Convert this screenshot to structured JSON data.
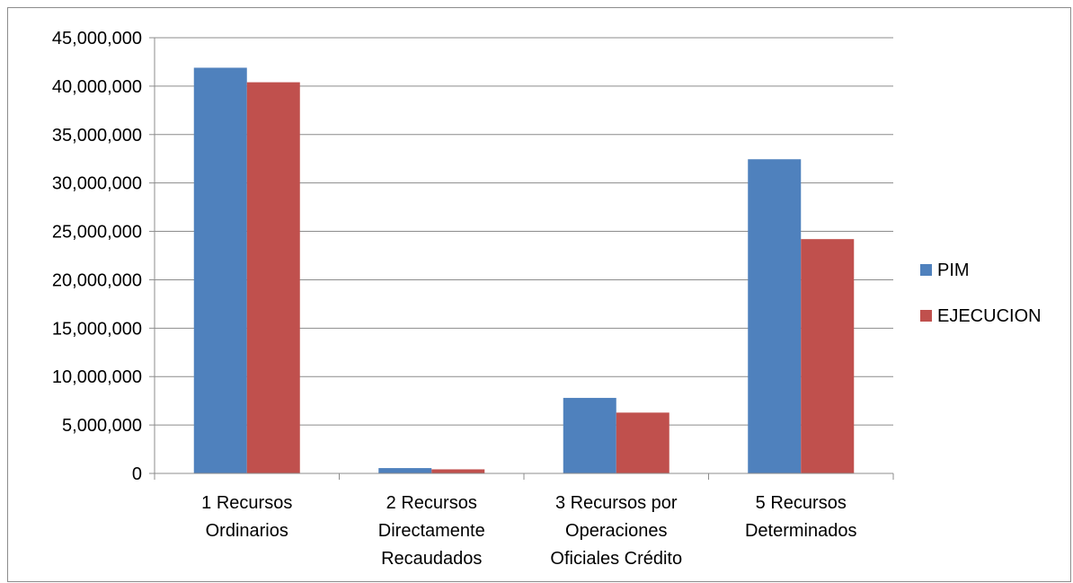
{
  "chart_data": {
    "type": "bar",
    "categories": [
      [
        "1 Recursos",
        "Ordinarios"
      ],
      [
        "2 Recursos",
        "Directamente",
        "Recaudados"
      ],
      [
        "3 Recursos por",
        "Operaciones",
        "Oficiales Crédito"
      ],
      [
        "5 Recursos",
        "Determinados"
      ]
    ],
    "series": [
      {
        "name": "PIM",
        "color": "#4f81bd",
        "values": [
          41900000,
          550000,
          7800000,
          32450000
        ]
      },
      {
        "name": "EJECUCION",
        "color": "#c0504d",
        "values": [
          40400000,
          420000,
          6280000,
          24200000
        ]
      }
    ],
    "ylim": [
      0,
      45000000
    ],
    "y_ticks": [
      0,
      5000000,
      10000000,
      15000000,
      20000000,
      25000000,
      30000000,
      35000000,
      40000000,
      45000000
    ],
    "y_tick_labels": [
      "0",
      "5,000,000",
      "10,000,000",
      "15,000,000",
      "20,000,000",
      "25,000,000",
      "30,000,000",
      "35,000,000",
      "40,000,000",
      "45,000,000"
    ],
    "grid": true,
    "legend_position": "right",
    "title": "",
    "xlabel": "",
    "ylabel": ""
  }
}
